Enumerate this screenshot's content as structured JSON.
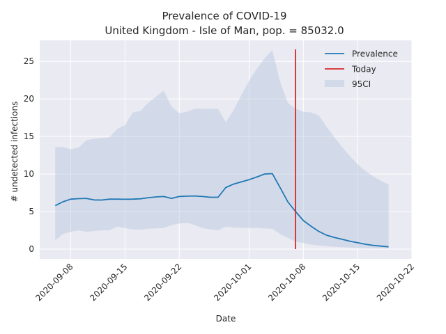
{
  "chart_data": {
    "type": "line",
    "title": "Prevalence of COVID-19",
    "subtitle": "United Kingdom - Isle of Man, pop. = 85032.0",
    "xlabel": "Date",
    "ylabel": "# undetected infections",
    "xlim": [
      "2020-09-04",
      "2020-10-22"
    ],
    "ylim": [
      -1.3,
      27.8
    ],
    "x_ticks": [
      "2020-09-08",
      "2020-09-15",
      "2020-09-22",
      "2020-10-01",
      "2020-10-08",
      "2020-10-15",
      "2020-10-22"
    ],
    "y_ticks": [
      0,
      5,
      10,
      15,
      20,
      25
    ],
    "grid": true,
    "legend_position": "top-right",
    "colors": {
      "prevalence": "#1f77b4",
      "today": "#d62728",
      "ci_fill": "#b0c4de",
      "background": "#eaeaf2",
      "grid": "#ffffff"
    },
    "series": [
      {
        "name": "Prevalence",
        "x": [
          "2020-09-06",
          "2020-09-07",
          "2020-09-08",
          "2020-09-09",
          "2020-09-10",
          "2020-09-11",
          "2020-09-12",
          "2020-09-13",
          "2020-09-14",
          "2020-09-15",
          "2020-09-16",
          "2020-09-17",
          "2020-09-18",
          "2020-09-19",
          "2020-09-20",
          "2020-09-21",
          "2020-09-22",
          "2020-09-23",
          "2020-09-24",
          "2020-09-25",
          "2020-09-26",
          "2020-09-27",
          "2020-09-28",
          "2020-09-29",
          "2020-09-30",
          "2020-10-01",
          "2020-10-02",
          "2020-10-03",
          "2020-10-04",
          "2020-10-05",
          "2020-10-06",
          "2020-10-07",
          "2020-10-08",
          "2020-10-09",
          "2020-10-10",
          "2020-10-11",
          "2020-10-12",
          "2020-10-13",
          "2020-10-14",
          "2020-10-15",
          "2020-10-16",
          "2020-10-17",
          "2020-10-18",
          "2020-10-19"
        ],
        "values": [
          5.8,
          6.3,
          6.65,
          6.72,
          6.75,
          6.55,
          6.53,
          6.65,
          6.65,
          6.63,
          6.65,
          6.7,
          6.85,
          6.95,
          7.0,
          6.75,
          7.0,
          7.05,
          7.08,
          7.0,
          6.9,
          6.9,
          8.2,
          8.65,
          8.95,
          9.25,
          9.6,
          10.0,
          10.05,
          8.2,
          6.3,
          5.0,
          3.8,
          3.05,
          2.35,
          1.85,
          1.55,
          1.3,
          1.05,
          0.85,
          0.65,
          0.5,
          0.4,
          0.3
        ]
      },
      {
        "name": "95CI",
        "x": [
          "2020-09-06",
          "2020-09-07",
          "2020-09-08",
          "2020-09-09",
          "2020-09-10",
          "2020-09-11",
          "2020-09-12",
          "2020-09-13",
          "2020-09-14",
          "2020-09-15",
          "2020-09-16",
          "2020-09-17",
          "2020-09-18",
          "2020-09-19",
          "2020-09-20",
          "2020-09-21",
          "2020-09-22",
          "2020-09-23",
          "2020-09-24",
          "2020-09-25",
          "2020-09-26",
          "2020-09-27",
          "2020-09-28",
          "2020-09-29",
          "2020-09-30",
          "2020-10-01",
          "2020-10-02",
          "2020-10-03",
          "2020-10-04",
          "2020-10-05",
          "2020-10-06",
          "2020-10-07",
          "2020-10-08",
          "2020-10-09",
          "2020-10-10",
          "2020-10-11",
          "2020-10-12",
          "2020-10-13",
          "2020-10-14",
          "2020-10-15",
          "2020-10-16",
          "2020-10-17",
          "2020-10-18",
          "2020-10-19"
        ],
        "lower": [
          1.2,
          2.0,
          2.3,
          2.5,
          2.3,
          2.4,
          2.5,
          2.5,
          3.0,
          2.8,
          2.6,
          2.6,
          2.7,
          2.75,
          2.8,
          3.2,
          3.4,
          3.5,
          3.2,
          2.8,
          2.6,
          2.5,
          3.0,
          2.9,
          2.85,
          2.8,
          2.8,
          2.75,
          2.7,
          2.0,
          1.5,
          1.0,
          0.8,
          0.6,
          0.5,
          0.4,
          0.3,
          0.25,
          0.2,
          0.15,
          0.12,
          0.1,
          0.08,
          0.05
        ],
        "upper": [
          13.6,
          13.6,
          13.3,
          13.5,
          14.5,
          14.7,
          14.8,
          14.9,
          16.0,
          16.5,
          18.2,
          18.4,
          19.5,
          20.3,
          21.1,
          19.0,
          18.1,
          18.3,
          18.7,
          18.7,
          18.7,
          18.7,
          16.9,
          18.5,
          20.5,
          22.4,
          24.0,
          25.4,
          26.5,
          22.3,
          19.5,
          18.7,
          18.3,
          18.2,
          17.8,
          16.3,
          14.9,
          13.6,
          12.4,
          11.3,
          10.4,
          9.7,
          9.1,
          8.6
        ]
      }
    ],
    "today": {
      "name": "Today",
      "x": "2020-10-07",
      "y_range": [
        0,
        26.6
      ]
    }
  }
}
